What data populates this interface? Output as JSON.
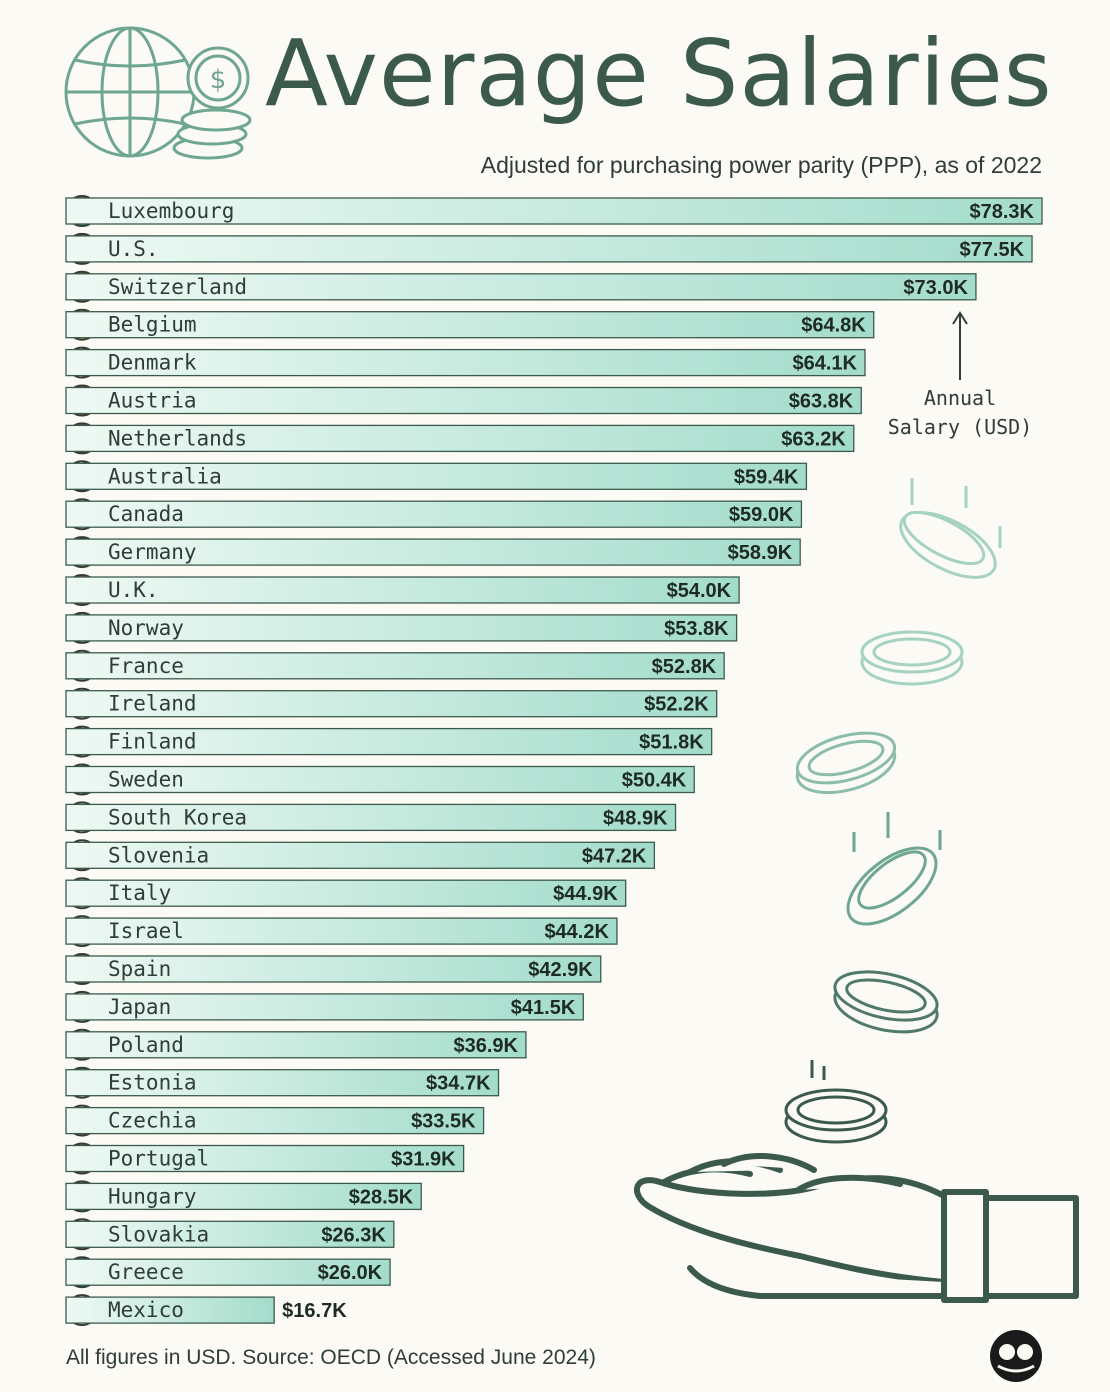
{
  "title": "Average Salaries",
  "subtitle": "Adjusted for purchasing power parity (PPP), as of 2022",
  "annotation": {
    "line1": "Annual",
    "line2": "Salary (USD)"
  },
  "source": "All figures in USD. Source: OECD (Accessed June 2024)",
  "colors": {
    "accent": "#3c5a4c",
    "bar_light": "#e6f7f1",
    "bar_dark": "#9fdcca",
    "background": "#fbfaf4",
    "text": "#2f3d36"
  },
  "icons": [
    "globe-icon",
    "dollar-coin-icon",
    "coin-stack-icon",
    "falling-coin-icon",
    "open-hand-icon",
    "brand-logo-icon"
  ],
  "chart_data": {
    "type": "bar",
    "orientation": "horizontal",
    "title": "Average Salaries",
    "subtitle": "Adjusted for purchasing power parity (PPP), as of 2022",
    "unit": "USD (thousands)",
    "value_label": "Annual Salary (USD)",
    "xlim": [
      0,
      78.3
    ],
    "categories": [
      "Luxembourg",
      "U.S.",
      "Switzerland",
      "Belgium",
      "Denmark",
      "Austria",
      "Netherlands",
      "Australia",
      "Canada",
      "Germany",
      "U.K.",
      "Norway",
      "France",
      "Ireland",
      "Finland",
      "Sweden",
      "South Korea",
      "Slovenia",
      "Italy",
      "Israel",
      "Spain",
      "Japan",
      "Poland",
      "Estonia",
      "Czechia",
      "Portugal",
      "Hungary",
      "Slovakia",
      "Greece",
      "Mexico"
    ],
    "values": [
      78.3,
      77.5,
      73.0,
      64.8,
      64.1,
      63.8,
      63.2,
      59.4,
      59.0,
      58.9,
      54.0,
      53.8,
      52.8,
      52.2,
      51.8,
      50.4,
      48.9,
      47.2,
      44.9,
      44.2,
      42.9,
      41.5,
      36.9,
      34.7,
      33.5,
      31.9,
      28.5,
      26.3,
      26.0,
      16.7
    ],
    "labels": [
      "$78.3K",
      "$77.5K",
      "$73.0K",
      "$64.8K",
      "$64.1K",
      "$63.8K",
      "$63.2K",
      "$59.4K",
      "$59.0K",
      "$58.9K",
      "$54.0K",
      "$53.8K",
      "$52.8K",
      "$52.2K",
      "$51.8K",
      "$50.4K",
      "$48.9K",
      "$47.2K",
      "$44.9K",
      "$44.2K",
      "$42.9K",
      "$41.5K",
      "$36.9K",
      "$34.7K",
      "$33.5K",
      "$31.9K",
      "$28.5K",
      "$26.3K",
      "$26.0K",
      "$16.7K"
    ]
  }
}
